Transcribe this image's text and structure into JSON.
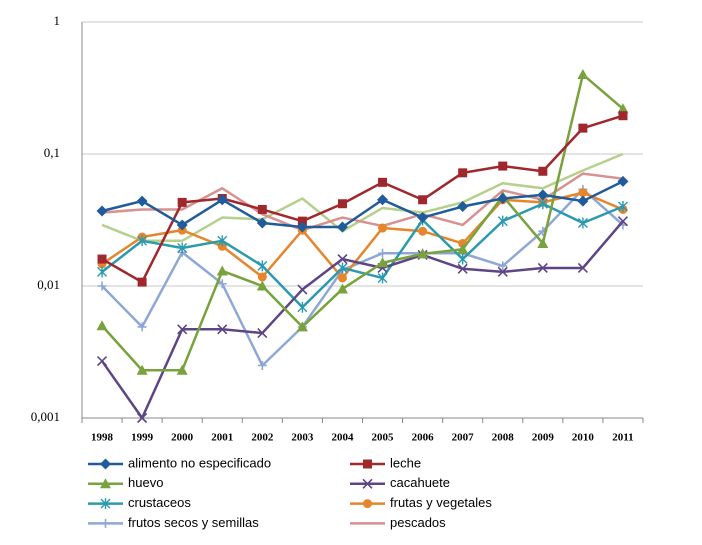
{
  "chart_data": {
    "type": "line",
    "log_scale": true,
    "grid": true,
    "legend": "bottom",
    "categories": [
      "1998",
      "1999",
      "2000",
      "2001",
      "2002",
      "2003",
      "2004",
      "2005",
      "2006",
      "2007",
      "2008",
      "2009",
      "2010",
      "2011"
    ],
    "ylim": [
      0.001,
      1
    ],
    "yticks": [
      {
        "value": 0.001,
        "label": "0,001"
      },
      {
        "value": 0.01,
        "label": "0,01"
      },
      {
        "value": 0.1,
        "label": "0,1"
      },
      1
    ],
    "series": [
      {
        "name": "alimento no especificado",
        "color": "#1f5c99",
        "marker": "diamond",
        "values": [
          0.037,
          0.044,
          0.029,
          0.045,
          0.03,
          0.028,
          0.028,
          0.045,
          0.033,
          0.04,
          0.046,
          0.049,
          0.044,
          0.062
        ]
      },
      {
        "name": "leche",
        "color": "#a0282c",
        "marker": "square",
        "values": [
          0.016,
          0.0107,
          0.043,
          0.046,
          0.038,
          0.031,
          0.042,
          0.061,
          0.045,
          0.072,
          0.081,
          0.074,
          0.157,
          0.195
        ]
      },
      {
        "name": "huevo",
        "color": "#77a23c",
        "marker": "triangle",
        "values": [
          0.005,
          0.0023,
          0.0023,
          0.013,
          0.01,
          0.0049,
          0.0095,
          0.015,
          0.0175,
          0.019,
          0.048,
          0.021,
          0.4,
          0.22
        ]
      },
      {
        "name": "cacahuete",
        "color": "#5e4585",
        "marker": "x",
        "values": [
          0.0027,
          0.001,
          0.0047,
          0.0047,
          0.0044,
          0.0094,
          0.016,
          0.0137,
          0.0172,
          0.0135,
          0.0128,
          0.0137,
          0.0137,
          0.031
        ]
      },
      {
        "name": "crustaceos",
        "color": "#2c9aae",
        "marker": "asterisk",
        "values": [
          0.0128,
          0.022,
          0.0194,
          0.022,
          0.0142,
          0.0069,
          0.0137,
          0.0115,
          0.0316,
          0.016,
          0.031,
          0.042,
          0.03,
          0.04
        ]
      },
      {
        "name": "frutas y vegetales",
        "color": "#e7852b",
        "marker": "circle",
        "values": [
          0.0147,
          0.0235,
          0.0265,
          0.02,
          0.0117,
          0.0265,
          0.0115,
          0.0275,
          0.026,
          0.021,
          0.045,
          0.043,
          0.051,
          0.038
        ]
      },
      {
        "name": "frutos secos y semillas",
        "color": "#8ea8d5",
        "marker": "plus",
        "values": [
          0.01,
          0.0049,
          0.018,
          0.0104,
          0.0025,
          0.0049,
          0.0132,
          0.0177,
          0.0177,
          0.0177,
          0.0142,
          0.026,
          0.054,
          0.029
        ]
      },
      {
        "name": "pescados",
        "color": "#d89090",
        "marker": "none",
        "values": [
          0.036,
          0.038,
          0.038,
          0.055,
          0.035,
          0.0265,
          0.033,
          0.0285,
          0.035,
          0.029,
          0.053,
          0.045,
          0.071,
          0.065
        ]
      },
      {
        "color": "#b5d08b",
        "marker": "none",
        "values": [
          0.029,
          0.022,
          0.022,
          0.033,
          0.032,
          0.046,
          0.026,
          0.039,
          0.036,
          0.043,
          0.06,
          0.055,
          0.075,
          0.1
        ]
      }
    ]
  }
}
